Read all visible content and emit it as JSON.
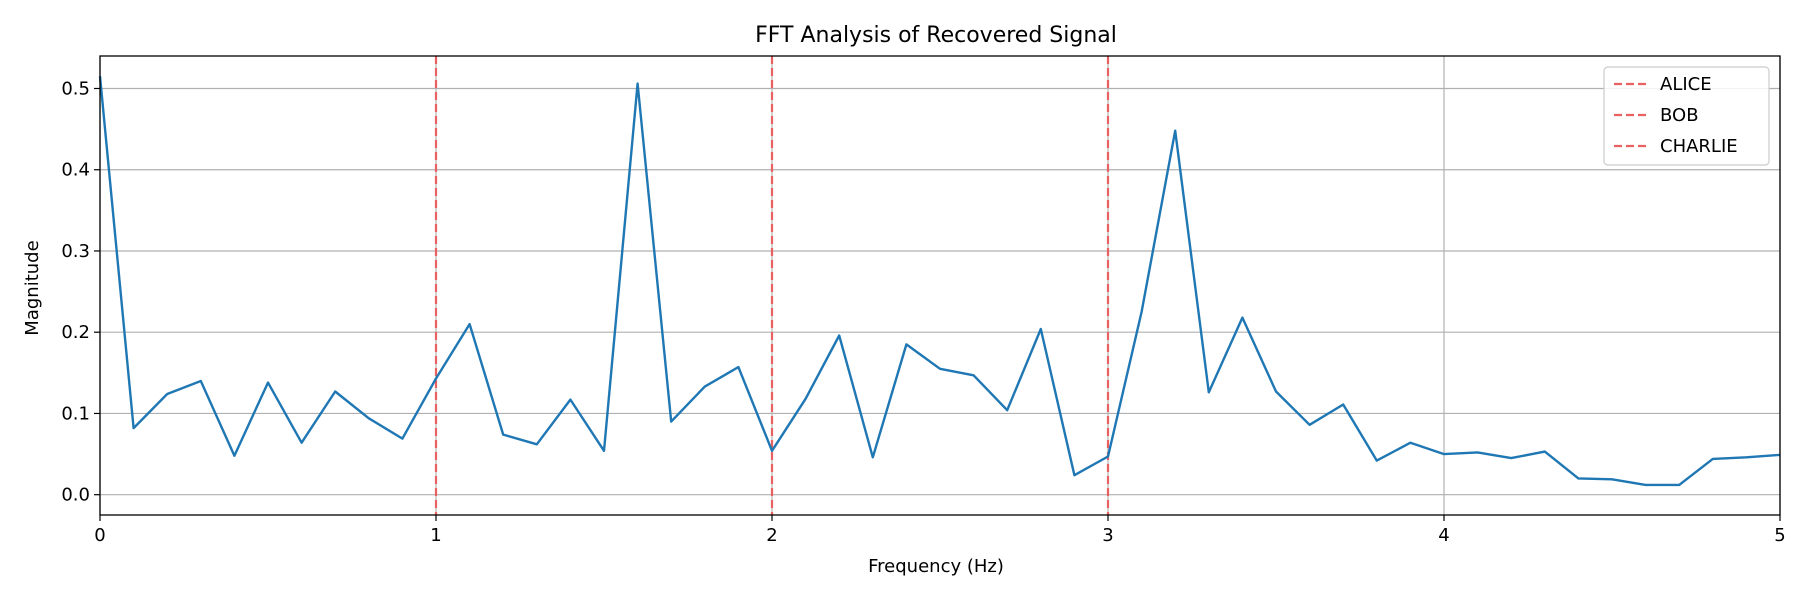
{
  "chart_data": {
    "type": "line",
    "title": "FFT Analysis of Recovered Signal",
    "xlabel": "Frequency (Hz)",
    "ylabel": "Magnitude",
    "xlim": [
      0,
      5
    ],
    "ylim": [
      -0.025,
      0.54
    ],
    "xticks": [
      0,
      1,
      2,
      3,
      4,
      5
    ],
    "xtick_labels": [
      "0",
      "1",
      "2",
      "3",
      "4",
      "5"
    ],
    "yticks": [
      0.0,
      0.1,
      0.2,
      0.3,
      0.4,
      0.5
    ],
    "ytick_labels": [
      "0.0",
      "0.1",
      "0.2",
      "0.3",
      "0.4",
      "0.5"
    ],
    "grid": true,
    "legend_position": "top-right",
    "series": [
      {
        "color": "#1f77b4",
        "x": [
          0.0,
          0.1,
          0.2,
          0.3,
          0.4,
          0.5,
          0.6,
          0.7,
          0.8,
          0.9,
          1.0,
          1.1,
          1.2,
          1.3,
          1.4,
          1.5,
          1.6,
          1.7,
          1.8,
          1.9,
          2.0,
          2.1,
          2.2,
          2.3,
          2.4,
          2.5,
          2.6,
          2.7,
          2.8,
          2.9,
          3.0,
          3.1,
          3.2,
          3.3,
          3.4,
          3.5,
          3.6,
          3.7,
          3.8,
          3.9,
          4.0,
          4.1,
          4.2,
          4.3,
          4.4,
          4.5,
          4.6,
          4.7,
          4.8,
          4.9,
          5.0
        ],
        "y": [
          0.515,
          0.082,
          0.124,
          0.14,
          0.048,
          0.138,
          0.064,
          0.127,
          0.094,
          0.069,
          0.143,
          0.21,
          0.074,
          0.062,
          0.117,
          0.054,
          0.506,
          0.09,
          0.133,
          0.157,
          0.054,
          0.118,
          0.196,
          0.046,
          0.185,
          0.155,
          0.147,
          0.104,
          0.204,
          0.024,
          0.047,
          0.225,
          0.448,
          0.126,
          0.218,
          0.127,
          0.086,
          0.111,
          0.042,
          0.064,
          0.05,
          0.052,
          0.045,
          0.053,
          0.02,
          0.019,
          0.012,
          0.012,
          0.044,
          0.046,
          0.049
        ]
      }
    ],
    "vlines": [
      {
        "name": "ALICE",
        "x": 1,
        "color": "#e86060",
        "style": "dashed"
      },
      {
        "name": "BOB",
        "x": 2,
        "color": "#e86060",
        "style": "dashed"
      },
      {
        "name": "CHARLIE",
        "x": 3,
        "color": "#e86060",
        "style": "dashed"
      }
    ]
  }
}
